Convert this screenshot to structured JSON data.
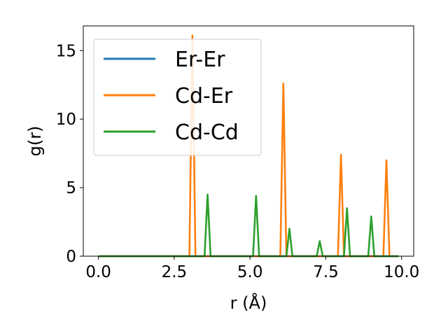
{
  "chart_data": {
    "type": "line",
    "xlabel": "r (Å)",
    "ylabel": "g(r)",
    "xlim": [
      -0.5,
      10.4
    ],
    "ylim": [
      0,
      16.8
    ],
    "xticks": [
      0.0,
      2.5,
      5.0,
      7.5,
      10.0
    ],
    "xtick_labels": [
      "0.0",
      "2.5",
      "5.0",
      "7.5",
      "10.0"
    ],
    "yticks": [
      0,
      5,
      10,
      15
    ],
    "ytick_labels": [
      "0",
      "5",
      "10",
      "15"
    ],
    "grid": false,
    "legend": {
      "position": "top-left",
      "entries": [
        "Er-Er",
        "Cd-Er",
        "Cd-Cd"
      ]
    },
    "series": [
      {
        "name": "Er-Er",
        "color": "#1f77b4",
        "x": [
          0.0,
          9.9
        ],
        "y": [
          0,
          0
        ]
      },
      {
        "name": "Cd-Er",
        "color": "#ff7f0e",
        "x": [
          0.0,
          3.0,
          3.1,
          3.2,
          6.0,
          6.1,
          6.2,
          7.9,
          8.0,
          8.1,
          9.4,
          9.5,
          9.6,
          9.9
        ],
        "y": [
          0,
          0,
          16.1,
          0,
          0,
          12.6,
          0,
          0,
          7.4,
          0,
          0,
          7.0,
          0,
          0
        ]
      },
      {
        "name": "Cd-Cd",
        "color": "#2ca02c",
        "x": [
          0.0,
          3.5,
          3.6,
          3.7,
          5.1,
          5.2,
          5.3,
          6.2,
          6.3,
          6.4,
          7.2,
          7.3,
          7.4,
          8.1,
          8.2,
          8.3,
          8.9,
          9.0,
          9.1,
          9.9
        ],
        "y": [
          0,
          0,
          4.5,
          0,
          0,
          4.4,
          0,
          0,
          2.0,
          0,
          0,
          1.1,
          0,
          0,
          3.5,
          0,
          0,
          2.9,
          0,
          0
        ]
      }
    ]
  }
}
